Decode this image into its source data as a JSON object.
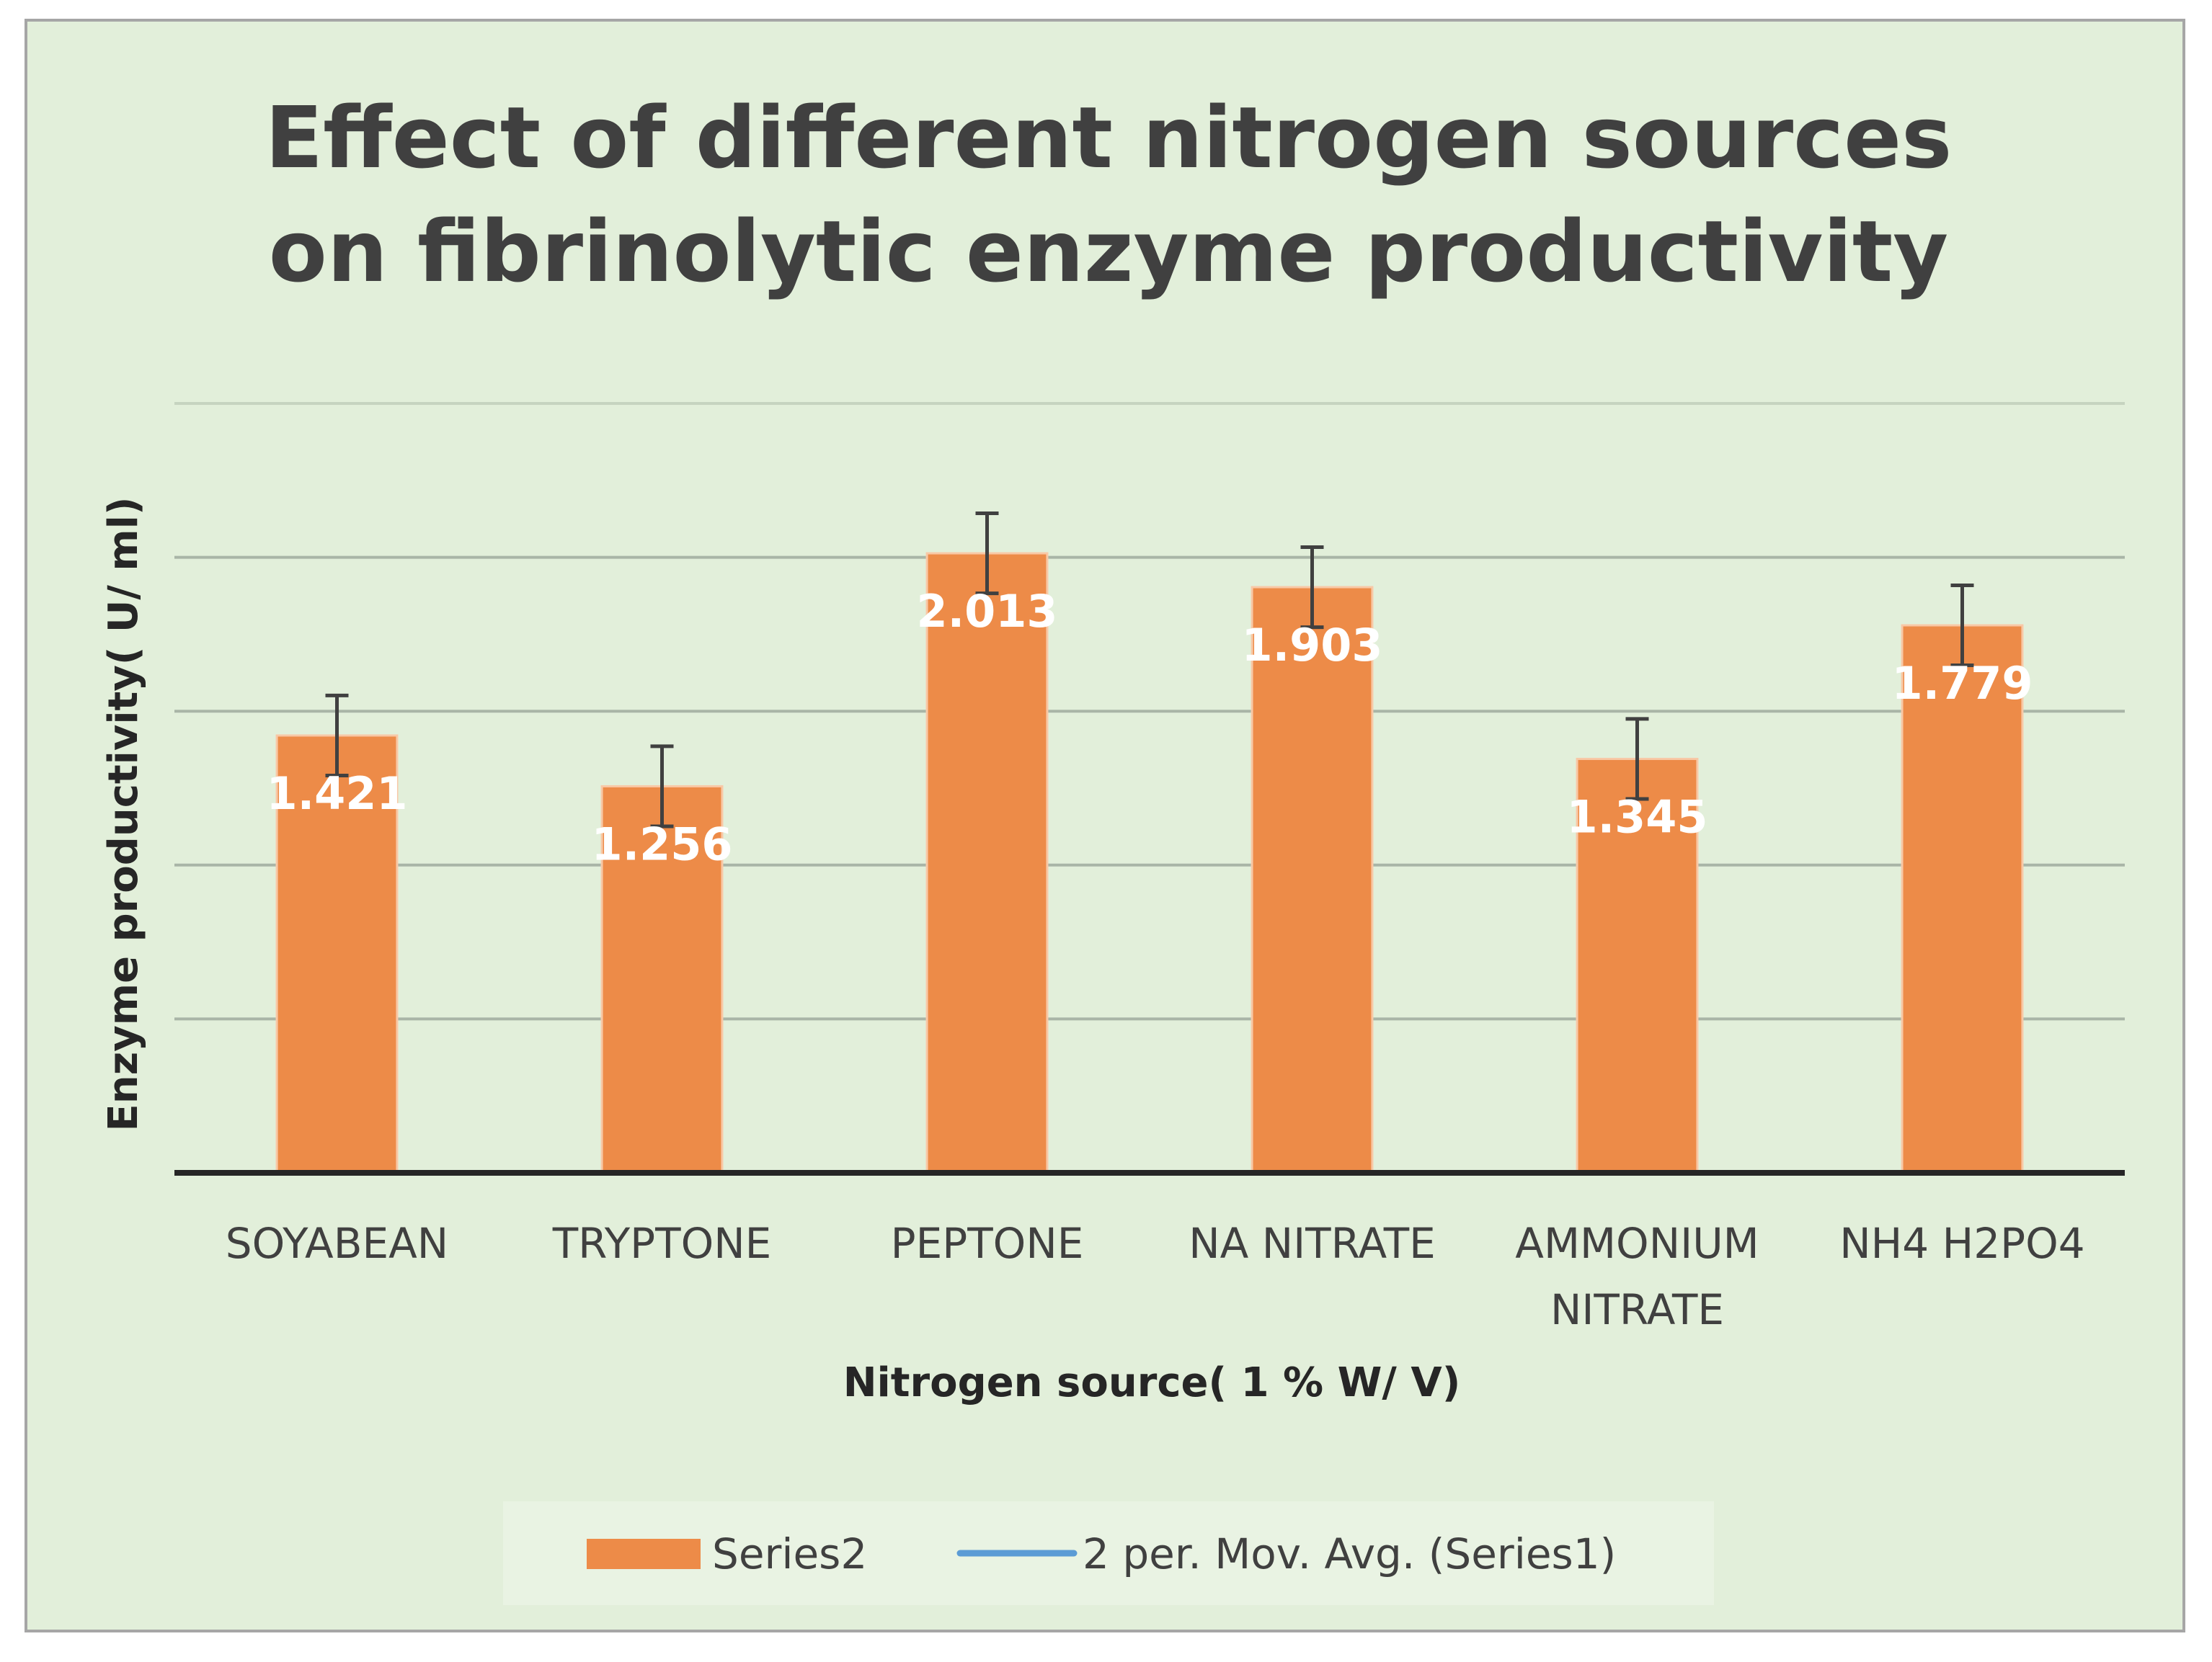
{
  "chart_data": {
    "type": "bar",
    "title": "Effect of different nitrogen sources on fibrinolytic enzyme productivity",
    "title_lines": [
      "Effect of different nitrogen sources",
      "on fibrinolytic enzyme productivity"
    ],
    "xlabel": "Nitrogen source( 1 % W/ V)",
    "ylabel": "Enzyme productivity( U/ ml)",
    "categories": [
      "SOYABEAN",
      "TRYPTONE",
      "PEPTONE",
      "NA NITRATE",
      "AMMONIUM NITRATE",
      "NH4 H2PO4"
    ],
    "category_lines": [
      [
        "SOYABEAN"
      ],
      [
        "TRYPTONE"
      ],
      [
        "PEPTONE"
      ],
      [
        "NA NITRATE"
      ],
      [
        "AMMONIUM",
        "NITRATE"
      ],
      [
        "NH4 H2PO4"
      ]
    ],
    "series": [
      {
        "name": "Series2",
        "color": "#ed8b48",
        "values": [
          1.421,
          1.256,
          2.013,
          1.903,
          1.345,
          1.779
        ],
        "error": [
          0.13,
          0.13,
          0.13,
          0.13,
          0.13,
          0.13
        ]
      }
    ],
    "data_labels": [
      "1.421",
      "1.256",
      "2.013",
      "1.903",
      "1.345",
      "1.779"
    ],
    "ylim": [
      0,
      2.5
    ],
    "gridlines": [
      0.5,
      1.0,
      1.5,
      2.0,
      2.5
    ],
    "grid": true,
    "show_y_tick_labels": false,
    "legend": {
      "position": "bottom",
      "entries": [
        {
          "name": "Series2",
          "kind": "bar",
          "color": "#ed8b48"
        },
        {
          "name": "2 per. Mov. Avg. (Series1)",
          "kind": "line",
          "color": "#5b9bd5"
        }
      ]
    }
  }
}
